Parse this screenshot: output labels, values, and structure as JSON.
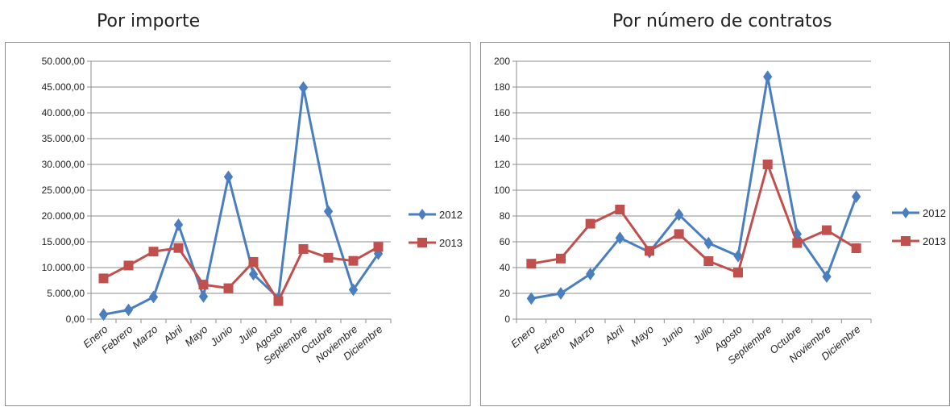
{
  "panels": [
    {
      "title": "Por importe"
    },
    {
      "title": "Por número de contratos"
    }
  ],
  "colors": {
    "series_2012": "#4a7ebf",
    "series_2013": "#c0504d",
    "grid": "#8c8c8c"
  },
  "chart_data": [
    {
      "type": "line",
      "title": "Por importe",
      "categories": [
        "Enero",
        "Febrero",
        "Marzo",
        "Abril",
        "Mayo",
        "Junio",
        "Julio",
        "Agosto",
        "Septiembre",
        "Octubre",
        "Noviembre",
        "Diciembre"
      ],
      "ylim": [
        0,
        50000
      ],
      "yticks": [
        0,
        5000,
        10000,
        15000,
        20000,
        25000,
        30000,
        35000,
        40000,
        45000,
        50000
      ],
      "ytick_labels": [
        "0,00",
        "5.000,00",
        "10.000,00",
        "15.000,00",
        "20.000,00",
        "25.000,00",
        "30.000,00",
        "35.000,00",
        "40.000,00",
        "45.000,00",
        "50.000,00"
      ],
      "grid": true,
      "legend": "right",
      "series": [
        {
          "name": "2012",
          "marker": "diamond",
          "values": [
            900,
            1800,
            4300,
            18300,
            4400,
            27600,
            8700,
            4100,
            44900,
            20900,
            5700,
            12700
          ]
        },
        {
          "name": "2013",
          "marker": "square",
          "values": [
            7900,
            10400,
            13100,
            13800,
            6700,
            6000,
            11100,
            3500,
            13600,
            11900,
            11300,
            14000
          ]
        }
      ]
    },
    {
      "type": "line",
      "title": "Por número de contratos",
      "categories": [
        "Enero",
        "Febrero",
        "Marzo",
        "Abril",
        "Mayo",
        "Junio",
        "Julio",
        "Agosto",
        "Septiembre",
        "Octubre",
        "Noviembre",
        "Diciembre"
      ],
      "ylim": [
        0,
        200
      ],
      "yticks": [
        0,
        20,
        40,
        60,
        80,
        100,
        120,
        140,
        160,
        180,
        200
      ],
      "ytick_labels": [
        "0",
        "20",
        "40",
        "60",
        "80",
        "100",
        "120",
        "140",
        "160",
        "180",
        "200"
      ],
      "grid": true,
      "legend": "right",
      "series": [
        {
          "name": "2012",
          "marker": "diamond",
          "values": [
            16,
            20,
            35,
            63,
            52,
            81,
            59,
            49,
            188,
            66,
            33,
            95
          ]
        },
        {
          "name": "2013",
          "marker": "square",
          "values": [
            43,
            47,
            74,
            85,
            53,
            66,
            45,
            36,
            120,
            59,
            69,
            55
          ]
        }
      ]
    }
  ]
}
